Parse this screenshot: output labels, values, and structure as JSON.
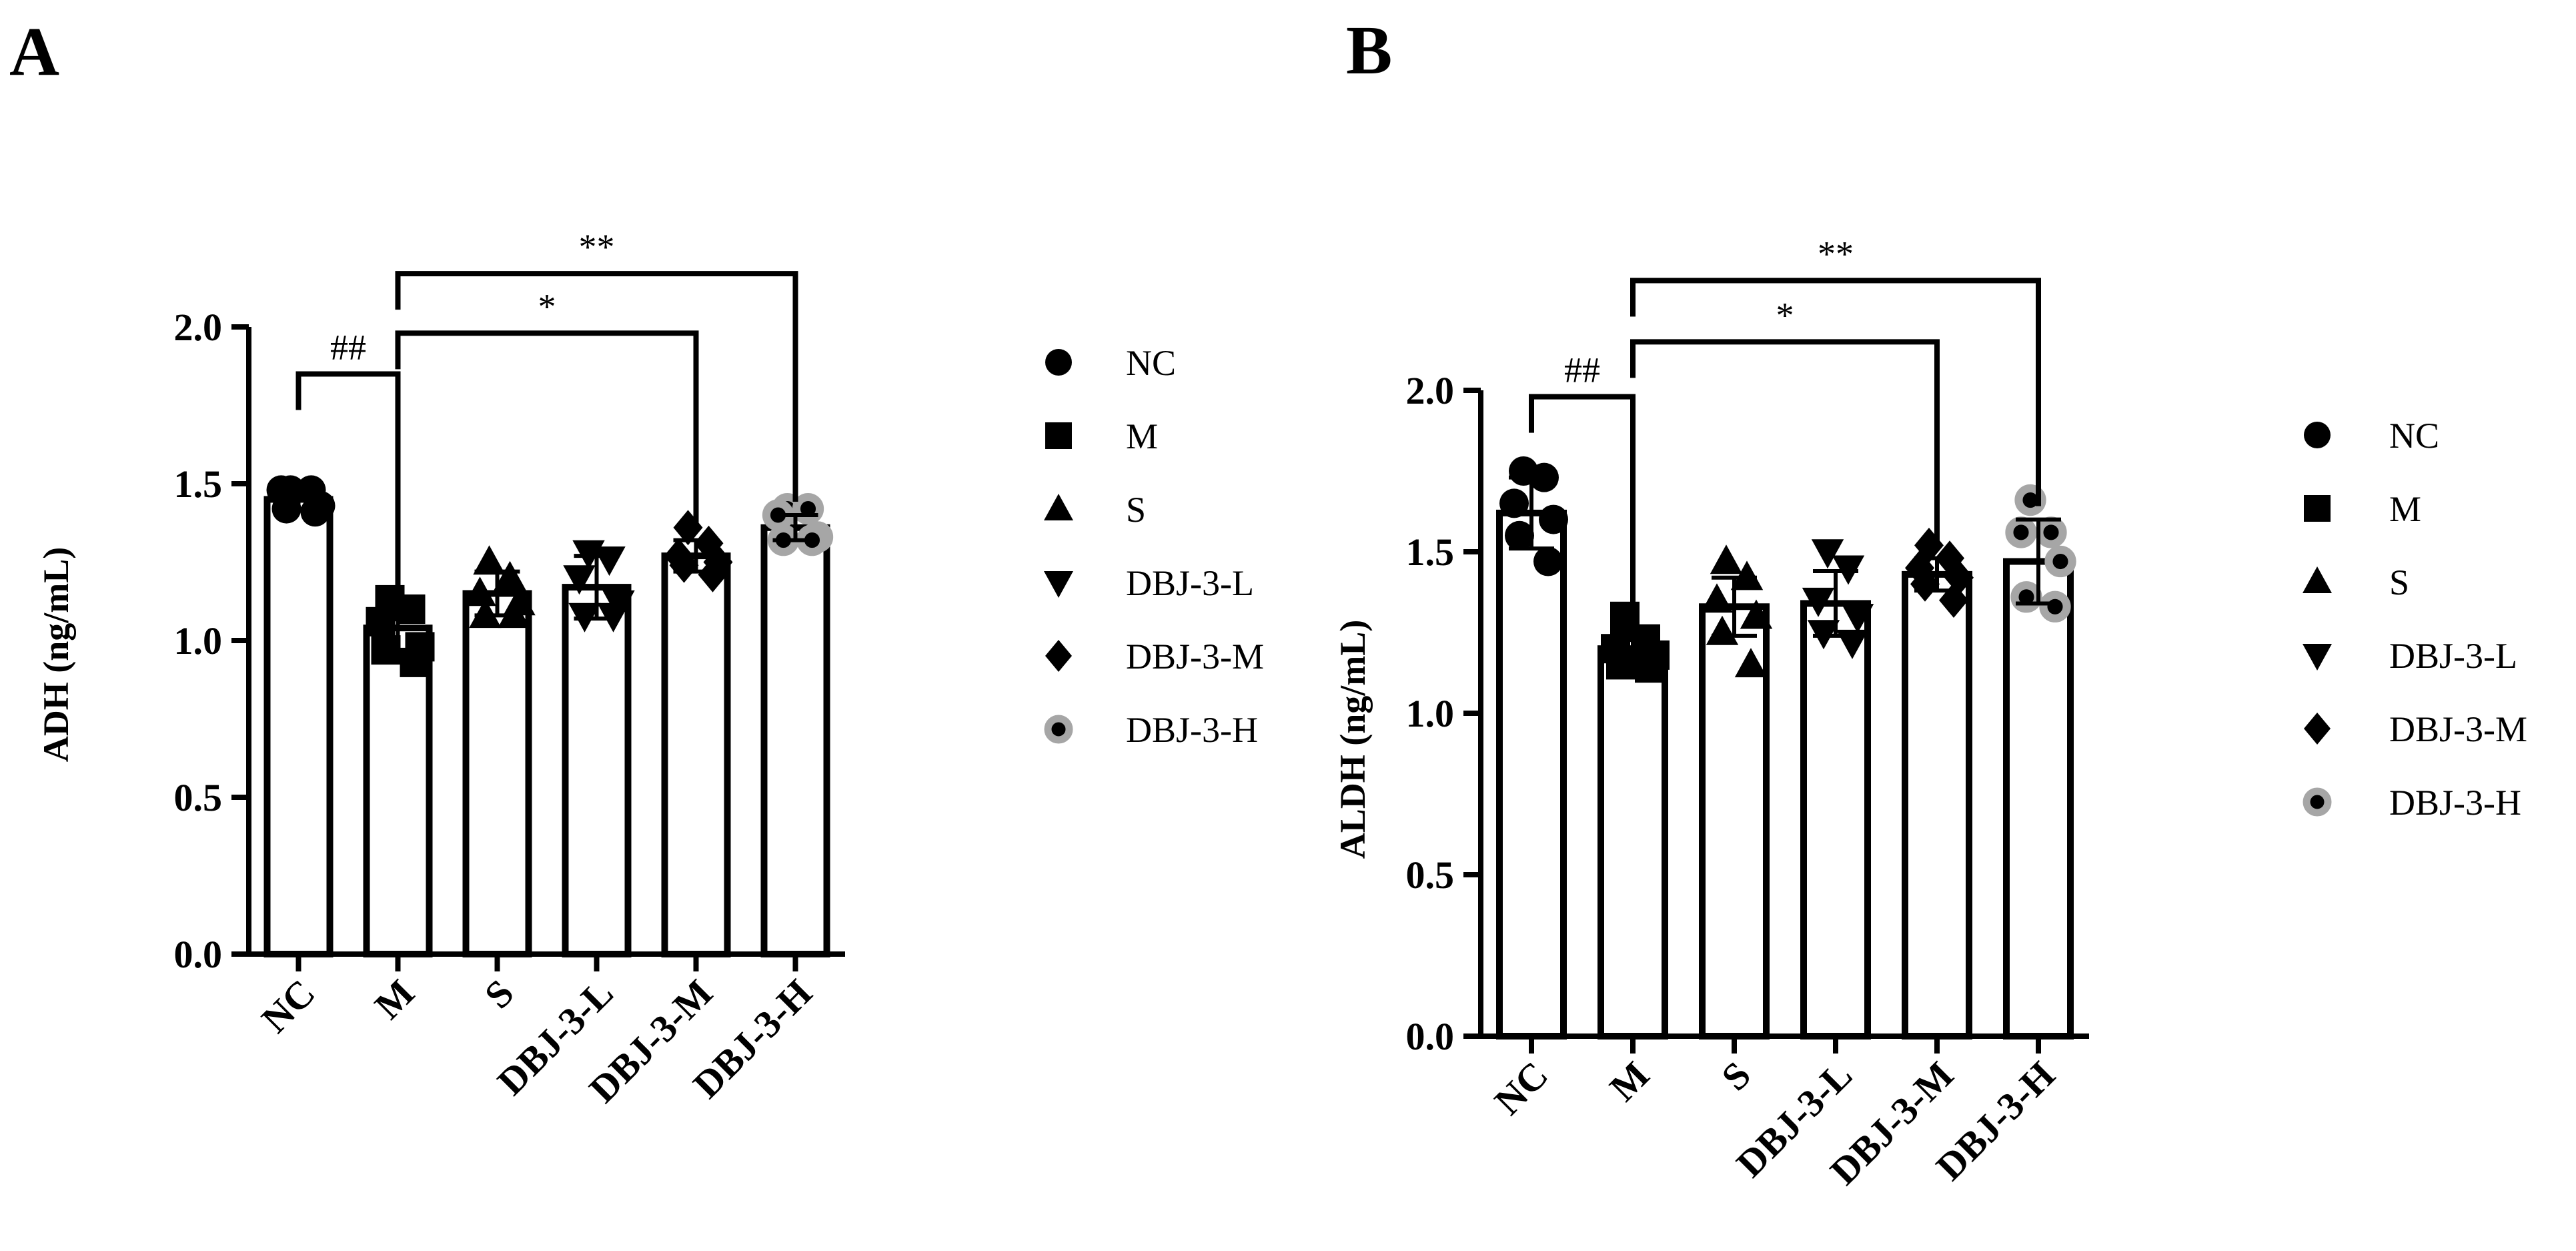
{
  "chart_data": [
    {
      "type": "bar",
      "panel": "A",
      "title": "",
      "xlabel": "",
      "ylabel": "ADH (ng/mL)",
      "ylim": [
        0,
        2.0
      ],
      "yticks": [
        0.0,
        0.5,
        1.0,
        1.5,
        2.0
      ],
      "ytick_labels": [
        "0.0",
        "0.5",
        "1.0",
        "1.5",
        "2.0"
      ],
      "categories": [
        "NC",
        "M",
        "S",
        "DBJ-3-L",
        "DBJ-3-M",
        "DBJ-3-H"
      ],
      "values": [
        1.45,
        1.04,
        1.15,
        1.17,
        1.27,
        1.36
      ],
      "errors": [
        0.03,
        0.08,
        0.07,
        0.1,
        0.05,
        0.04
      ],
      "points": [
        [
          1.48,
          1.48,
          1.48,
          1.43,
          1.42,
          1.41
        ],
        [
          1.13,
          1.1,
          1.06,
          0.98,
          0.97,
          0.93
        ],
        [
          1.25,
          1.2,
          1.15,
          1.12,
          1.08,
          1.08
        ],
        [
          1.28,
          1.26,
          1.2,
          1.12,
          1.08,
          1.08
        ],
        [
          1.36,
          1.31,
          1.27,
          1.25,
          1.24,
          1.21
        ],
        [
          1.42,
          1.42,
          1.4,
          1.33,
          1.32,
          1.32
        ]
      ],
      "significance": [
        {
          "from": "NC",
          "to": "M",
          "label": "##",
          "level": 1.85
        },
        {
          "from": "M",
          "to": "DBJ-3-M",
          "label": "*",
          "level": 1.98
        },
        {
          "from": "M",
          "to": "DBJ-3-H",
          "label": "**",
          "level": 2.17
        }
      ],
      "legend": [
        "NC",
        "M",
        "S",
        "DBJ-3-L",
        "DBJ-3-M",
        "DBJ-3-H"
      ],
      "legend_position": "right"
    },
    {
      "type": "bar",
      "panel": "B",
      "title": "",
      "xlabel": "",
      "ylabel": "ALDH (ng/mL)",
      "ylim": [
        0,
        2.0
      ],
      "yticks": [
        0.0,
        0.5,
        1.0,
        1.5,
        2.0
      ],
      "ytick_labels": [
        "0.0",
        "0.5",
        "1.0",
        "1.5",
        "2.0"
      ],
      "categories": [
        "NC",
        "M",
        "S",
        "DBJ-3-L",
        "DBJ-3-M",
        "DBJ-3-H"
      ],
      "values": [
        1.62,
        1.2,
        1.33,
        1.34,
        1.43,
        1.47
      ],
      "errors": [
        0.11,
        0.05,
        0.09,
        0.1,
        0.05,
        0.13
      ],
      "points": [
        [
          1.75,
          1.73,
          1.65,
          1.6,
          1.55,
          1.47
        ],
        [
          1.3,
          1.23,
          1.2,
          1.18,
          1.15,
          1.14
        ],
        [
          1.47,
          1.42,
          1.35,
          1.3,
          1.25,
          1.15
        ],
        [
          1.5,
          1.45,
          1.35,
          1.3,
          1.25,
          1.22
        ],
        [
          1.52,
          1.48,
          1.45,
          1.42,
          1.4,
          1.35
        ],
        [
          1.66,
          1.56,
          1.56,
          1.47,
          1.36,
          1.33
        ]
      ],
      "significance": [
        {
          "from": "NC",
          "to": "M",
          "label": "##",
          "level": 1.98
        },
        {
          "from": "M",
          "to": "DBJ-3-M",
          "label": "*",
          "level": 2.15
        },
        {
          "from": "M",
          "to": "DBJ-3-H",
          "label": "**",
          "level": 2.34
        }
      ],
      "legend": [
        "NC",
        "M",
        "S",
        "DBJ-3-L",
        "DBJ-3-M",
        "DBJ-3-H"
      ],
      "legend_position": "right"
    }
  ],
  "panels": [
    "A",
    "B"
  ]
}
